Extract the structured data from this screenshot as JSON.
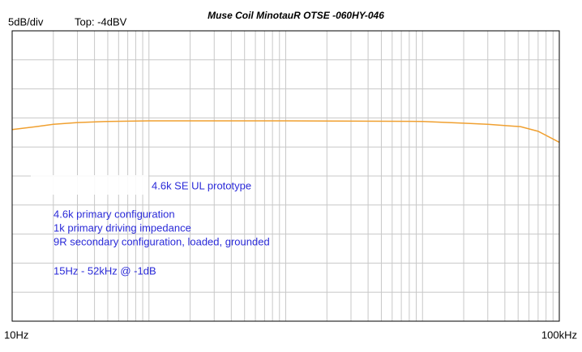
{
  "chart_data": {
    "type": "line",
    "title": "Muse Coil MinotauR OTSE -060HY-046",
    "scale_label": "5dB/div",
    "top_label": "Top: -4dBV",
    "annotations": [
      "4.6k SE UL prototype",
      "4.6k primary configuration",
      "1k primary driving impedance",
      "9R secondary configuration, loaded, grounded",
      "15Hz - 52kHz @ -1dB"
    ],
    "x": [
      10,
      15,
      20,
      30,
      50,
      100,
      1000,
      10000,
      20000,
      30000,
      52000,
      70000,
      100000
    ],
    "values": [
      -21.0,
      -20.5,
      -20.1,
      -19.8,
      -19.6,
      -19.5,
      -19.5,
      -19.6,
      -19.9,
      -20.1,
      -20.5,
      -21.3,
      -23.2
    ],
    "color": "#f0a030",
    "log_x": true,
    "xlim": [
      10,
      100000
    ],
    "xticks": [
      {
        "value": 10,
        "label": "10Hz"
      },
      {
        "value": 100000,
        "label": "100kHz"
      }
    ],
    "ylim": [
      -54,
      -4
    ],
    "yticks": [
      -4,
      -9,
      -14,
      -19,
      -24,
      -29,
      -34,
      -39,
      -44,
      -49,
      -54
    ],
    "grid": true
  }
}
